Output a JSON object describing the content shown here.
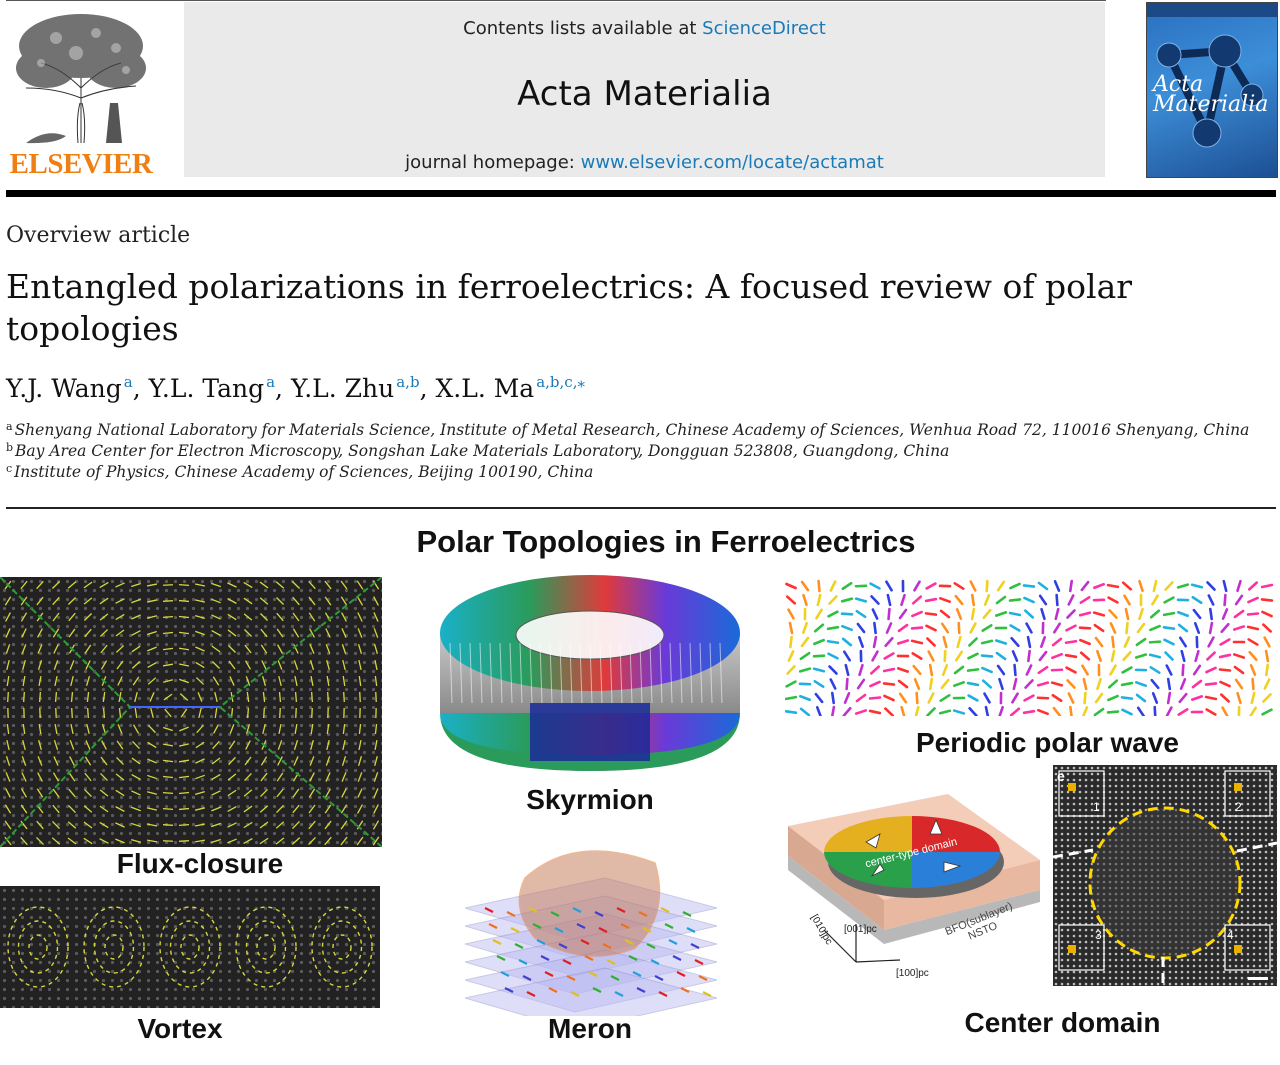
{
  "header": {
    "publisher": "ELSEVIER",
    "contents_prefix": "Contents lists available at ",
    "contents_link": "ScienceDirect",
    "journal_title": "Acta Materialia",
    "homepage_prefix": "journal homepage: ",
    "homepage_link": "www.elsevier.com/locate/actamat",
    "cover_title": "Acta Materialia"
  },
  "article": {
    "type": "Overview article",
    "title": "Entangled polarizations in ferroelectrics: A focused review of polar topologies",
    "authors": [
      {
        "name": "Y.J. Wang",
        "affil": "a"
      },
      {
        "name": "Y.L. Tang",
        "affil": "a"
      },
      {
        "name": "Y.L. Zhu",
        "affil": "a,b"
      },
      {
        "name": "X.L. Ma",
        "affil": "a,b,c,"
      }
    ],
    "corresponding_mark": "⁎",
    "affiliations": [
      {
        "key": "a",
        "text": "Shenyang National Laboratory for Materials Science, Institute of Metal Research, Chinese Academy of Sciences, Wenhua Road 72, 110016 Shenyang, China"
      },
      {
        "key": "b",
        "text": "Bay Area Center for Electron Microscopy, Songshan Lake Materials Laboratory, Dongguan 523808, Guangdong, China"
      },
      {
        "key": "c",
        "text": "Institute of Physics, Chinese Academy of Sciences, Beijing 100190, China"
      }
    ]
  },
  "abstract_figure": {
    "title": "Polar Topologies in Ferroelectrics",
    "panels": {
      "flux_closure": "Flux-closure",
      "vortex": "Vortex",
      "skyrmion": "Skyrmion",
      "meron": "Meron",
      "periodic_wave": "Periodic polar wave",
      "center_domain": "Center domain"
    },
    "center_domain_labels": {
      "domain": "center-type domain",
      "layer": "BFO(sublayer)",
      "substrate": "NSTO",
      "axis_x": "[100]pc",
      "axis_y": "[010]pc",
      "axis_z": "[001]pc"
    },
    "micrograph_labels": {
      "panel_letter": "e",
      "corners": [
        "1",
        "2",
        "3",
        "4"
      ]
    }
  }
}
